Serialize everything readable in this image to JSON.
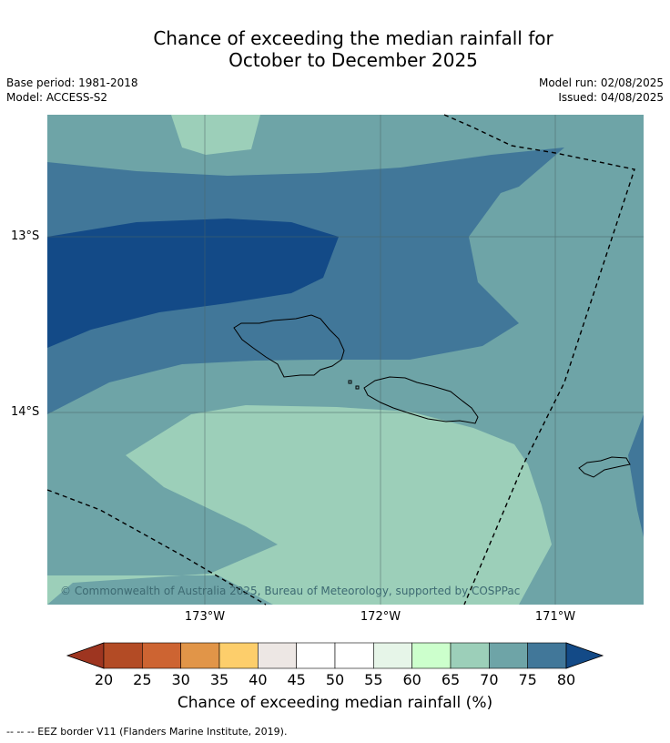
{
  "title": {
    "line1": "Chance of exceeding the median rainfall for",
    "line2": "October to December 2025"
  },
  "meta": {
    "base_period": "Base period: 1981-2018",
    "model": "Model: ACCESS-S2",
    "model_run": "Model run: 02/08/2025",
    "issued": "Issued: 04/08/2025"
  },
  "map": {
    "lat_labels": [
      "13°S",
      "14°S"
    ],
    "lon_labels": [
      "173°W",
      "172°W",
      "171°W"
    ],
    "copyright": "© Commonwealth of Australia 2025, Bureau of Meteorology, supported by COSPPac",
    "colors": {
      "c60_65": "#ccffcc",
      "c65_70": "#9ccfb9",
      "c70_75": "#6ea4a7",
      "c75_80": "#417799",
      "c80plus": "#134a87"
    }
  },
  "colorbar": {
    "ticks": [
      "20",
      "25",
      "30",
      "35",
      "40",
      "45",
      "50",
      "55",
      "60",
      "65",
      "70",
      "75",
      "80"
    ],
    "colors": [
      "#9e3520",
      "#b34b25",
      "#cd6432",
      "#e19548",
      "#fdce6b",
      "#ede7e4",
      "#ffffff",
      "#ffffff",
      "#e6f5e8",
      "#ccffcc",
      "#9ccfb9",
      "#6ea4a7",
      "#417799",
      "#134a87"
    ],
    "label": "Chance of exceeding median rainfall (%)"
  },
  "footnote": "--  --  -- EEZ border V11 (Flanders Marine Institute, 2019)."
}
